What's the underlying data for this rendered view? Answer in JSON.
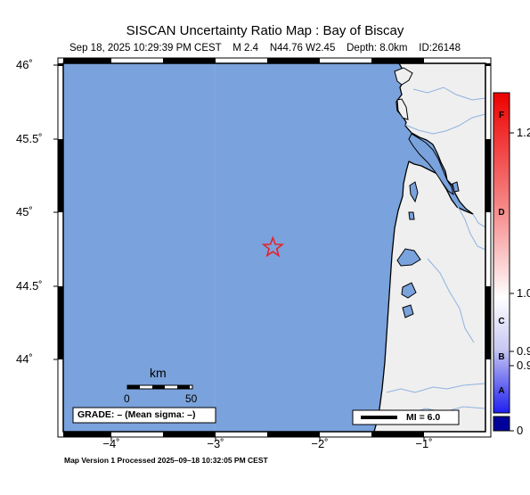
{
  "map": {
    "title": "SISCAN Uncertainty Ratio Map : Bay of Biscay",
    "subtitle": "Sep 18, 2025 10:29:39 PM CEST    M 2.4    N44.76 W2.45    Depth: 8.0km    ID:26148",
    "lat_labels": [
      "46˚",
      "45.5˚",
      "45˚",
      "44.5˚",
      "44˚"
    ],
    "lon_labels": [
      "−4˚",
      "−3˚",
      "−2˚",
      "−1˚"
    ],
    "epicenter": {
      "lon": -2.45,
      "lat": 44.76,
      "marker": "star-icon"
    },
    "scale_bar": {
      "unit": "km",
      "min_label": "0",
      "max_label": "50"
    },
    "grade_box": "GRADE: – (Mean sigma: –)",
    "mi_legend": "MI = 6.0",
    "footer": "Map Version 1 Processed 2025–09–18 10:32:05 PM CEST",
    "colors": {
      "sea": "#7aa2dc",
      "land": "#efefef",
      "coast": "#000000",
      "epicenter": "#e8202a",
      "rivers": "#8fb2df"
    }
  },
  "colorbar": {
    "ticks": [
      "1.2",
      "1.0",
      "0.9",
      "0.9",
      "0"
    ],
    "grades": [
      "F",
      "D",
      "C",
      "B",
      "A"
    ],
    "colors": {
      "top": "#ee0000",
      "mid": "#ffffff",
      "bottom": "#1e1ef0",
      "cap": "#00009a"
    }
  }
}
